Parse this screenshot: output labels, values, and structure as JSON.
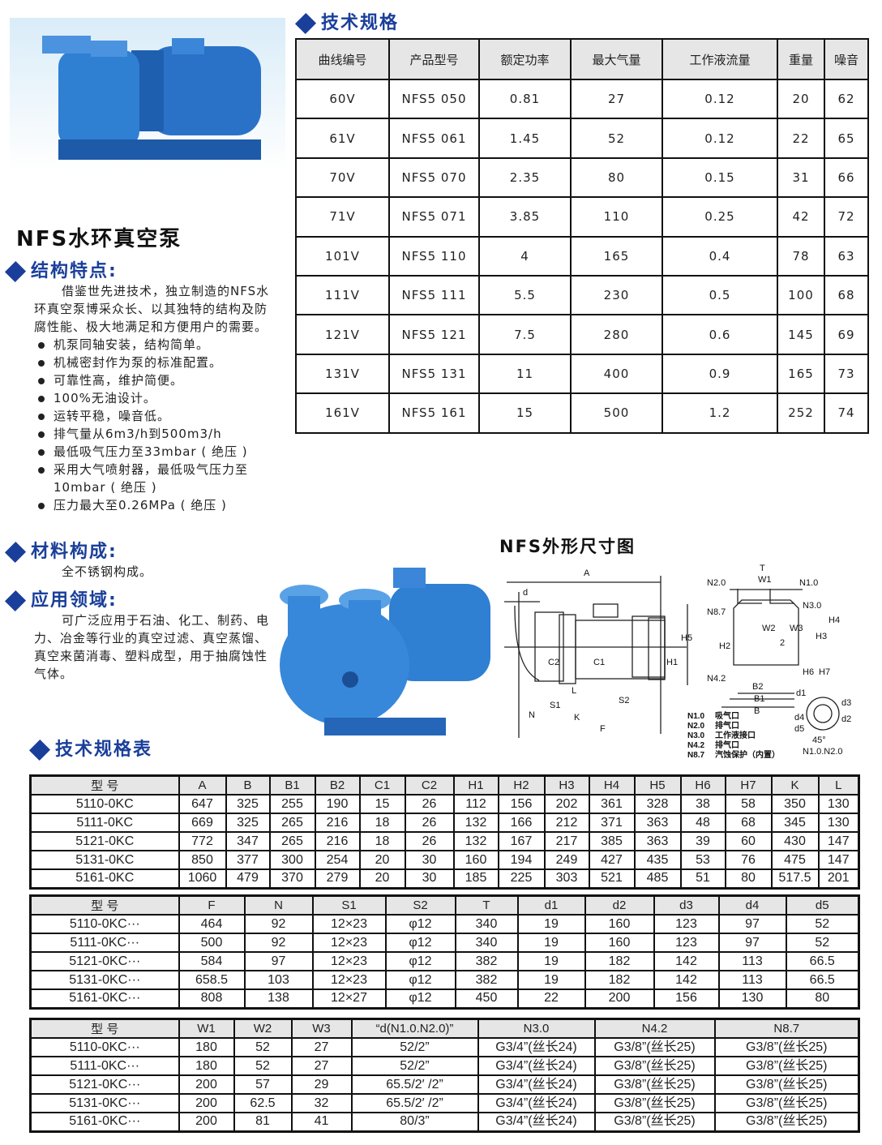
{
  "spec": {
    "title": "技术规格",
    "headers": [
      "曲线编号",
      "产品型号",
      "额定功率",
      "最大气量",
      "工作液流量",
      "重量",
      "噪音"
    ],
    "rows": [
      [
        "60V",
        "NFS5 050",
        "0.81",
        "27",
        "0.12",
        "20",
        "62"
      ],
      [
        "61V",
        "NFS5 061",
        "1.45",
        "52",
        "0.12",
        "22",
        "65"
      ],
      [
        "70V",
        "NFS5 070",
        "2.35",
        "80",
        "0.15",
        "31",
        "66"
      ],
      [
        "71V",
        "NFS5 071",
        "3.85",
        "110",
        "0.25",
        "42",
        "72"
      ],
      [
        "101V",
        "NFS5 110",
        "4",
        "165",
        "0.4",
        "78",
        "63"
      ],
      [
        "111V",
        "NFS5 111",
        "5.5",
        "230",
        "0.5",
        "100",
        "68"
      ],
      [
        "121V",
        "NFS5 121",
        "7.5",
        "280",
        "0.6",
        "145",
        "69"
      ],
      [
        "131V",
        "NFS5 131",
        "11",
        "400",
        "0.9",
        "165",
        "73"
      ],
      [
        "161V",
        "NFS5 161",
        "15",
        "500",
        "1.2",
        "252",
        "74"
      ]
    ]
  },
  "product_title": "NFS水环真空泵",
  "structure": {
    "heading": "结构特点:",
    "intro": "借鉴世先进技术，独立制造的NFS水环真空泵博采众长、以其独特的结构及防腐性能、极大地满足和方便用户的需要。",
    "bullets": [
      "机泵同轴安装，结构简单。",
      "机械密封作为泵的标准配置。",
      "可靠性高，维护简便。",
      "100%无油设计。",
      "运转平稳，噪音低。",
      "排气量从6m3/h到500m3/h",
      "最低吸气压力至33mbar ( 绝压 )",
      "采用大气喷射器，最低吸气压力至10mbar ( 绝压 )",
      "压力最大至0.26MPa ( 绝压 )"
    ]
  },
  "material": {
    "heading": "材料构成:",
    "text": "全不锈钢构成。"
  },
  "application": {
    "heading": "应用领域:",
    "text": "可广泛应用于石油、化工、制药、电力、冶金等行业的真空过滤、真空蒸馏、真空来菌消毒、塑料成型，用于抽腐蚀性气体。"
  },
  "diagram": {
    "title": "NFS外形尺寸图",
    "labels": [
      "A",
      "d",
      "H5",
      "H1",
      "C2",
      "C1",
      "L",
      "S1",
      "S2",
      "N",
      "K",
      "F",
      "T",
      "W1",
      "N2.0",
      "N1.0",
      "N8.7",
      "N3.0",
      "H4",
      "H3",
      "H2",
      "W2",
      "W3",
      "2",
      "H6",
      "H7",
      "N4.2",
      "B2",
      "B1",
      "B",
      "d1",
      "d4",
      "d5",
      "d3",
      "d2",
      "45°",
      "N1.0.N2.0"
    ],
    "legend": [
      {
        "code": "N1.0",
        "text": "吸气口"
      },
      {
        "code": "N2.0",
        "text": "排气口"
      },
      {
        "code": "N3.0",
        "text": "工作液接口"
      },
      {
        "code": "N4.2",
        "text": "排气口"
      },
      {
        "code": "N8.7",
        "text": "汽蚀保护（内置）"
      }
    ]
  },
  "dims_title": "技术规格表",
  "dims1": {
    "headers": [
      "型 号",
      "A",
      "B",
      "B1",
      "B2",
      "C1",
      "C2",
      "H1",
      "H2",
      "H3",
      "H4",
      "H5",
      "H6",
      "H7",
      "K",
      "L"
    ],
    "rows": [
      [
        "5110-0KC",
        "647",
        "325",
        "255",
        "190",
        "15",
        "26",
        "112",
        "156",
        "202",
        "361",
        "328",
        "38",
        "58",
        "350",
        "130"
      ],
      [
        "5111-0KC",
        "669",
        "325",
        "265",
        "216",
        "18",
        "26",
        "132",
        "166",
        "212",
        "371",
        "363",
        "48",
        "68",
        "345",
        "130"
      ],
      [
        "5121-0KC",
        "772",
        "347",
        "265",
        "216",
        "18",
        "26",
        "132",
        "167",
        "217",
        "385",
        "363",
        "39",
        "60",
        "430",
        "147"
      ],
      [
        "5131-0KC",
        "850",
        "377",
        "300",
        "254",
        "20",
        "30",
        "160",
        "194",
        "249",
        "427",
        "435",
        "53",
        "76",
        "475",
        "147"
      ],
      [
        "5161-0KC",
        "1060",
        "479",
        "370",
        "279",
        "20",
        "30",
        "185",
        "225",
        "303",
        "521",
        "485",
        "51",
        "80",
        "517.5",
        "201"
      ]
    ]
  },
  "dims2": {
    "headers": [
      "型 号",
      "F",
      "N",
      "S1",
      "S2",
      "T",
      "d1",
      "d2",
      "d3",
      "d4",
      "d5"
    ],
    "rows": [
      [
        "5110-0KC···",
        "464",
        "92",
        "12×23",
        "φ12",
        "340",
        "19",
        "160",
        "123",
        "97",
        "52"
      ],
      [
        "5111-0KC···",
        "500",
        "92",
        "12×23",
        "φ12",
        "340",
        "19",
        "160",
        "123",
        "97",
        "52"
      ],
      [
        "5121-0KC···",
        "584",
        "97",
        "12×23",
        "φ12",
        "382",
        "19",
        "182",
        "142",
        "113",
        "66.5"
      ],
      [
        "5131-0KC···",
        "658.5",
        "103",
        "12×23",
        "φ12",
        "382",
        "19",
        "182",
        "142",
        "113",
        "66.5"
      ],
      [
        "5161-0KC···",
        "808",
        "138",
        "12×27",
        "φ12",
        "450",
        "22",
        "200",
        "156",
        "130",
        "80"
      ]
    ]
  },
  "dims3": {
    "headers": [
      "型 号",
      "W1",
      "W2",
      "W3",
      "“d(N1.0.N2.0)”",
      "N3.0",
      "N4.2",
      "N8.7"
    ],
    "rows": [
      [
        "5110-0KC···",
        "180",
        "52",
        "27",
        "52/2”",
        "G3/4”(丝长24)",
        "G3/8”(丝长25)",
        "G3/8”(丝长25)"
      ],
      [
        "5111-0KC···",
        "180",
        "52",
        "27",
        "52/2”",
        "G3/4”(丝长24)",
        "G3/8”(丝长25)",
        "G3/8”(丝长25)"
      ],
      [
        "5121-0KC···",
        "200",
        "57",
        "29",
        "65.5/2′ /2”",
        "G3/4”(丝长24)",
        "G3/8”(丝长25)",
        "G3/8”(丝长25)"
      ],
      [
        "5131-0KC···",
        "200",
        "62.5",
        "32",
        "65.5/2′ /2”",
        "G3/4”(丝长24)",
        "G3/8”(丝长25)",
        "G3/8”(丝长25)"
      ],
      [
        "5161-0KC···",
        "200",
        "81",
        "41",
        "80/3”",
        "G3/4”(丝长24)",
        "G3/8”(丝长25)",
        "G3/8”(丝长25)"
      ]
    ]
  },
  "colors": {
    "heading_blue": "#1a3f9a",
    "pump_blue": "#2a72c8",
    "header_gray": "#e6e6e6"
  }
}
